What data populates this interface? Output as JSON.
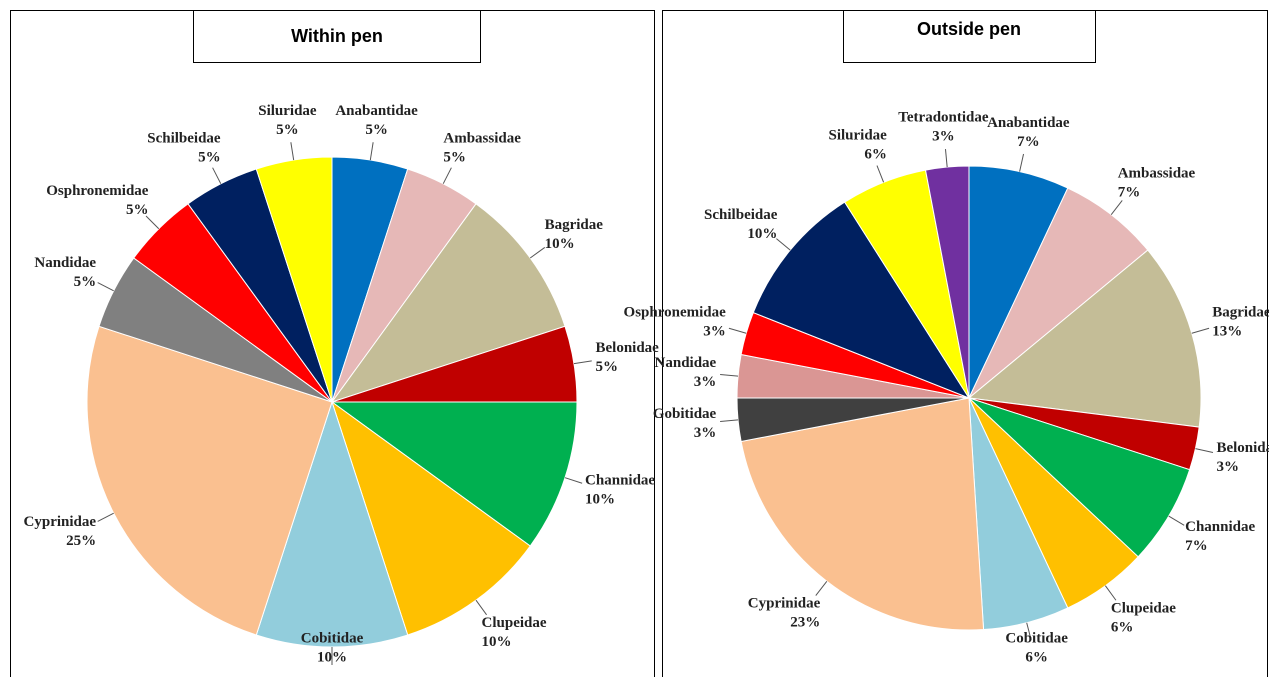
{
  "chart_data": [
    {
      "type": "pie",
      "title": "Within pen",
      "categories": [
        "Anabantidae",
        "Ambassidae",
        "Bagridae",
        "Belonidae",
        "Channidae",
        "Clupeidae",
        "Cobitidae",
        "Cyprinidae",
        "Nandidae",
        "Osphronemidae",
        "Schilbeidae",
        "Siluridae"
      ],
      "values": [
        5,
        5,
        10,
        5,
        10,
        10,
        10,
        25,
        5,
        5,
        5,
        5
      ],
      "value_labels": [
        "5%",
        "5%",
        "10%",
        "5%",
        "10%",
        "10%",
        "10%",
        "25%",
        "5%",
        "5%",
        "5%",
        "5%"
      ],
      "colors": [
        "#0070c0",
        "#e6b8b7",
        "#c4bd97",
        "#c00000",
        "#00b050",
        "#ffc000",
        "#92cddc",
        "#fac090",
        "#808080",
        "#ff0000",
        "#002060",
        "#ffff00"
      ]
    },
    {
      "type": "pie",
      "title": "Outside pen",
      "categories": [
        "Anabantidae",
        "Ambassidae",
        "Bagridae",
        "Belonida",
        "Channidae",
        "Clupeidae",
        "Cobitidae",
        "Cyprinidae",
        "Gobitidae",
        "Nandidae",
        "Osphronemidae",
        "Schilbeidae",
        "Siluridae",
        "Tetradontidae"
      ],
      "values": [
        7,
        7,
        13,
        3,
        7,
        6,
        6,
        23,
        3,
        3,
        3,
        10,
        6,
        3
      ],
      "value_labels": [
        "7%",
        "7%",
        "13%",
        "3%",
        "7%",
        "6%",
        "6%",
        "23%",
        "3%",
        "3%",
        "3%",
        "10%",
        "6%",
        "3%"
      ],
      "colors": [
        "#0070c0",
        "#e6b8b7",
        "#c4bd97",
        "#c00000",
        "#00b050",
        "#ffc000",
        "#92cddc",
        "#fac090",
        "#404040",
        "#da9694",
        "#ff0000",
        "#002060",
        "#ffff00",
        "#7030a0"
      ]
    }
  ]
}
